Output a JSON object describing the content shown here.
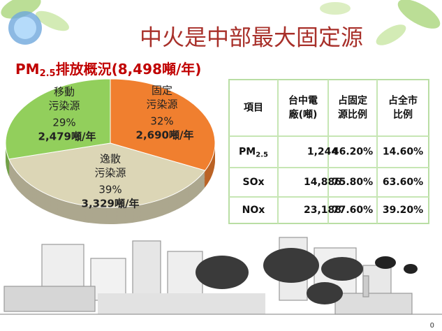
{
  "title": "中火是中部最大固定源",
  "chart_data": {
    "type": "pie",
    "title_parts": [
      "PM",
      "2.5",
      "排放概況(8,498噸/年)"
    ],
    "categories": [
      [
        "固定",
        "污染源"
      ],
      [
        "逸散",
        "污染源"
      ],
      [
        "移動",
        "污染源"
      ]
    ],
    "values": [
      32,
      39,
      29
    ],
    "value_labels": [
      "32%",
      "39%",
      "29%"
    ],
    "amount_labels": [
      "2,690噸/年",
      "3,329噸/年",
      "2,479噸/年"
    ],
    "colors": [
      "#f07f2f",
      "#dcd6b6",
      "#92cf5c"
    ],
    "amount_colors": [
      "#7030a0",
      "#e0207a",
      "#1f3fbf"
    ]
  },
  "table": {
    "header": [
      [
        "項目"
      ],
      [
        "台中電",
        "廠(噸)"
      ],
      [
        "占固定",
        "源比例"
      ],
      [
        "占全市",
        "比例"
      ]
    ],
    "rows": [
      [
        [
          "PM",
          "2.5"
        ],
        "1,244",
        "46.20%",
        "14.60%"
      ],
      [
        [
          "SOx"
        ],
        "14,886",
        "75.80%",
        "63.60%"
      ],
      [
        [
          "NOx"
        ],
        "23,188",
        "77.60%",
        "39.20%"
      ]
    ]
  },
  "page_number": "0"
}
